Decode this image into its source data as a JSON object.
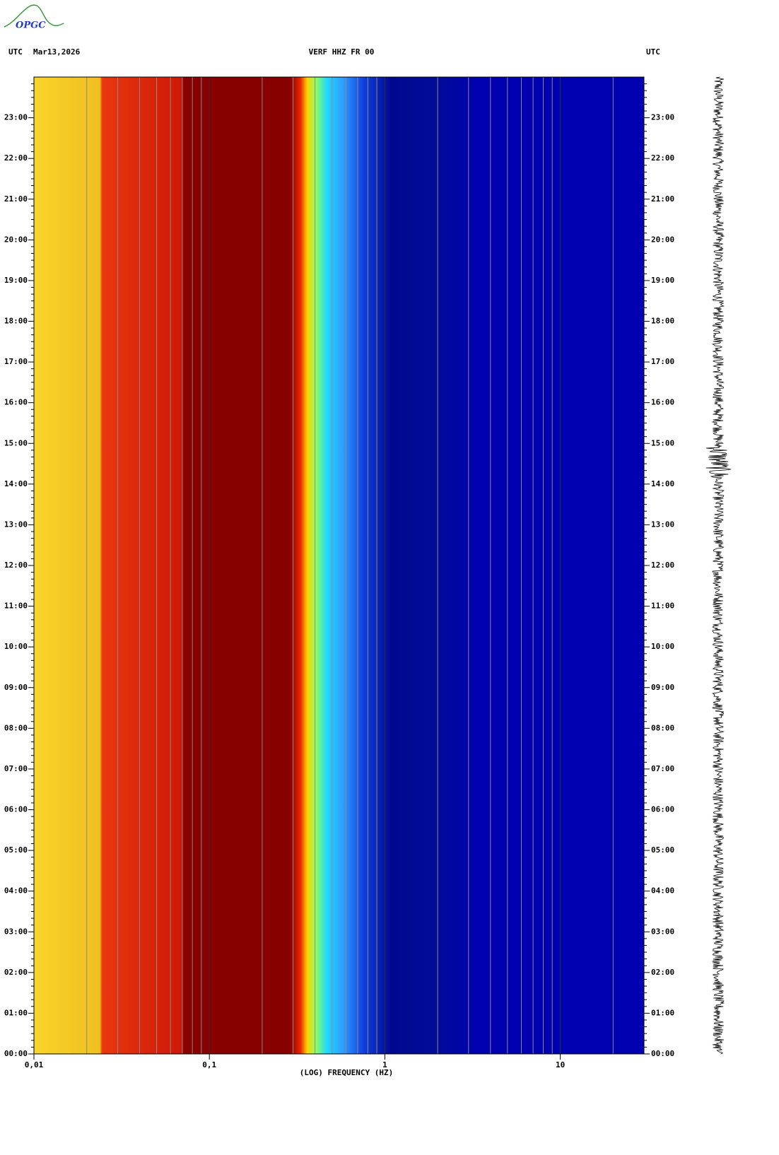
{
  "logo": "OPGC",
  "header": {
    "left_zone": "UTC",
    "date": "Mar13,2026",
    "station": "VERF HHZ FR 00",
    "right_zone": "UTC"
  },
  "chart_data": {
    "type": "spectrogram",
    "x_label": "(LOG) FREQUENCY (HZ)",
    "log_x": true,
    "xlim": [
      0.01,
      30
    ],
    "xticks": [
      {
        "value": 0.01,
        "label": "0,01"
      },
      {
        "value": 0.1,
        "label": "0,1"
      },
      1,
      10
    ],
    "minor_grid": true,
    "ylim": [
      0,
      24
    ],
    "yticks": [
      {
        "value": 0,
        "label": "00:00"
      },
      {
        "value": 1,
        "label": "01:00"
      },
      {
        "value": 2,
        "label": "02:00"
      },
      {
        "value": 3,
        "label": "03:00"
      },
      {
        "value": 4,
        "label": "04:00"
      },
      {
        "value": 5,
        "label": "05:00"
      },
      {
        "value": 6,
        "label": "06:00"
      },
      {
        "value": 7,
        "label": "07:00"
      },
      {
        "value": 8,
        "label": "08:00"
      },
      {
        "value": 9,
        "label": "09:00"
      },
      {
        "value": 10,
        "label": "10:00"
      },
      {
        "value": 11,
        "label": "11:00"
      },
      {
        "value": 12,
        "label": "12:00"
      },
      {
        "value": 13,
        "label": "13:00"
      },
      {
        "value": 14,
        "label": "14:00"
      },
      {
        "value": 15,
        "label": "15:00"
      },
      {
        "value": 16,
        "label": "16:00"
      },
      {
        "value": 17,
        "label": "17:00"
      },
      {
        "value": 18,
        "label": "18:00"
      },
      {
        "value": 19,
        "label": "19:00"
      },
      {
        "value": 20,
        "label": "20:00"
      },
      {
        "value": 21,
        "label": "21:00"
      },
      {
        "value": 22,
        "label": "22:00"
      },
      {
        "value": 23,
        "label": "23:00"
      }
    ]
  }
}
